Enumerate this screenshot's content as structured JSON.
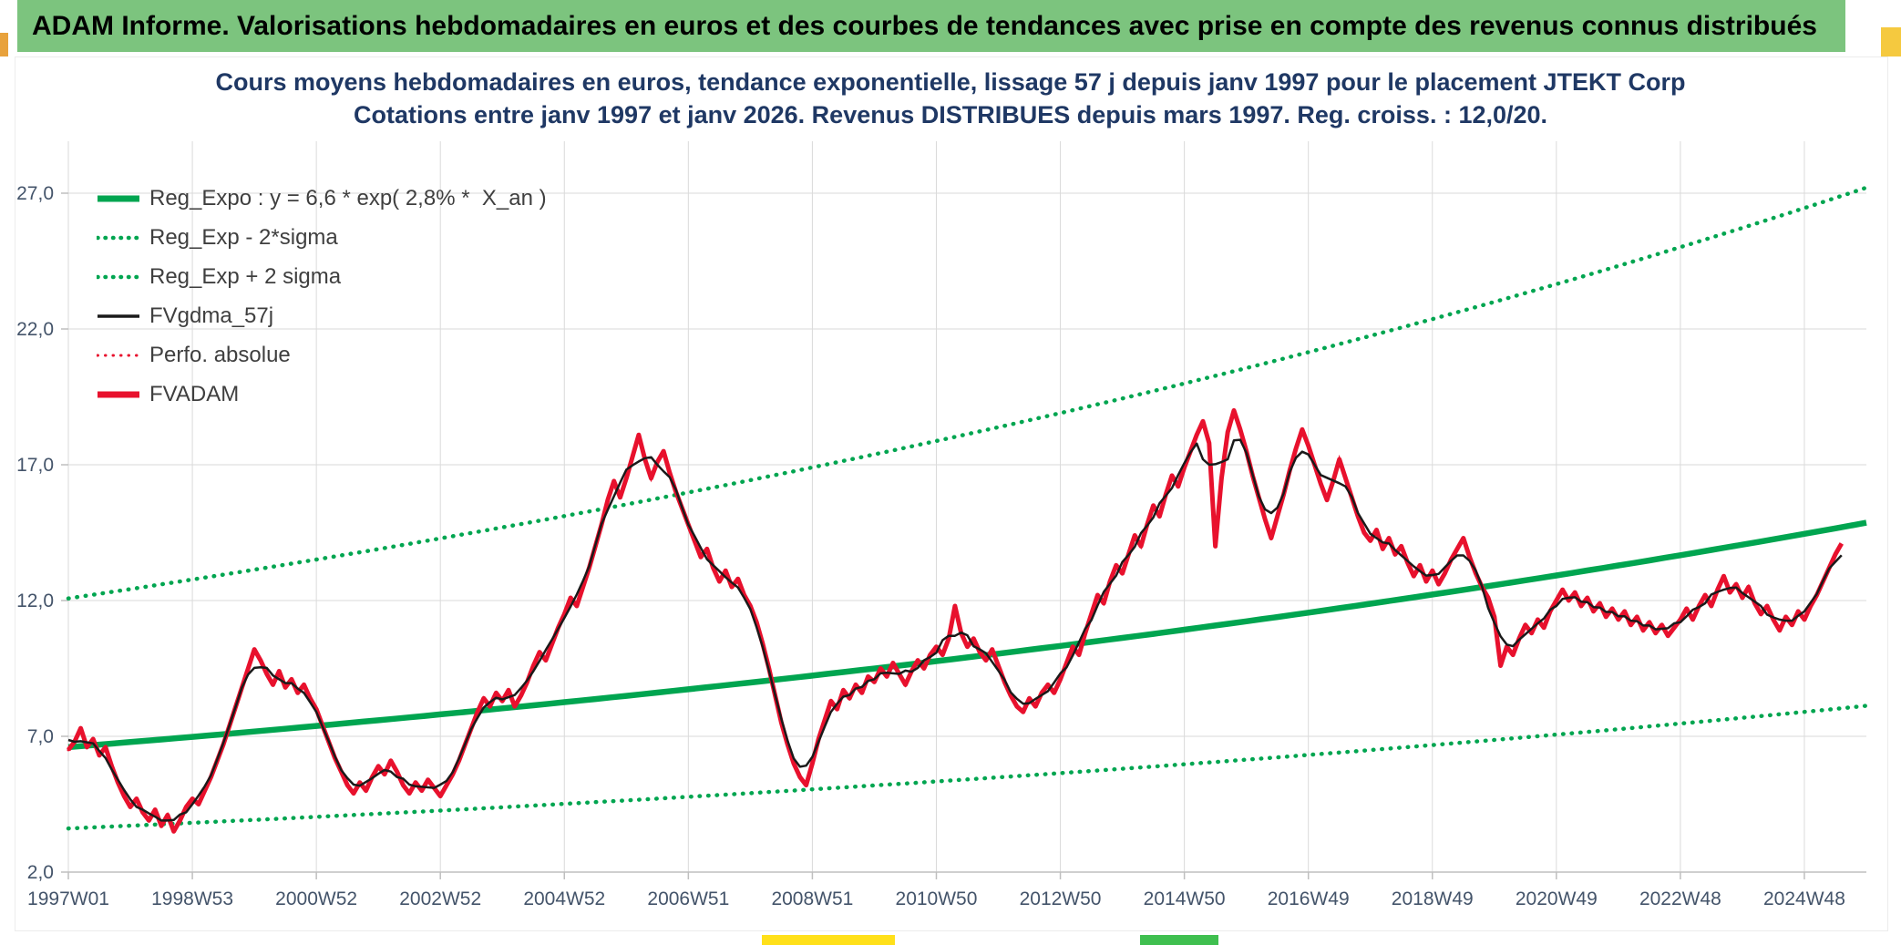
{
  "header": {
    "title": "ADAM Informe. Valorisations hebdomadaires en euros et des courbes de tendances avec prise en compte des revenus connus distribués"
  },
  "colors": {
    "green": "#00A550",
    "red": "#E8112D",
    "black": "#1A1A1A",
    "grid": "#DADADA",
    "axis_line": "#BFBFBF",
    "axis_text": "#44546A",
    "title_text": "#1F3864",
    "header_bg": "#7CC47E",
    "legend_text": "#3F3F3F"
  },
  "chart_data": {
    "type": "line",
    "title": "Cours moyens hebdomadaires en euros, tendance exponentielle, lissage 57 j depuis janv 1997 pour le placement JTEKT Corp",
    "subtitle": "Cotations entre janv 1997 et janv 2026. Revenus DISTRIBUES depuis mars 1997. Reg. croiss. : 12,0/20.",
    "grid": true,
    "legend_position": "top-left",
    "x_axis": {
      "range": [
        1997,
        2026
      ],
      "tick_years": [
        1997,
        1999,
        2001,
        2003,
        2005,
        2007,
        2009,
        2011,
        2013,
        2015,
        2017,
        2019,
        2021,
        2023,
        2025
      ],
      "tick_labels": [
        "1997W01",
        "1998W53",
        "2000W52",
        "2002W52",
        "2004W52",
        "2006W51",
        "2008W51",
        "2010W50",
        "2012W50",
        "2014W50",
        "2016W49",
        "2018W49",
        "2020W49",
        "2022W48",
        "2024W48"
      ]
    },
    "y_axis": {
      "range": [
        2,
        28.5
      ],
      "tick_values": [
        2,
        7,
        12,
        17,
        22,
        27
      ],
      "tick_labels": [
        "2,0",
        "7,0",
        "12,0",
        "17,0",
        "22,0",
        "27,0"
      ]
    },
    "regression": {
      "formula_label": "y = 6,6 * exp( 2,8% *  X_an )",
      "y0": 6.6,
      "annual_rate": 0.028,
      "x0_year": 1997,
      "band_factor": 1.83
    },
    "legend": [
      {
        "label": "Reg_Expo : y = 6,6 * exp( 2,8% *  X_an )",
        "color": "green",
        "style": "solid",
        "width": 7
      },
      {
        "label": "Reg_Exp - 2*sigma",
        "color": "green",
        "style": "dotted",
        "width": 4.5
      },
      {
        "label": "Reg_Exp + 2 sigma",
        "color": "green",
        "style": "dotted",
        "width": 4.5
      },
      {
        "label": "FVgdma_57j",
        "color": "black",
        "style": "solid",
        "width": 3.5
      },
      {
        "label": "Perfo. absolue",
        "color": "red",
        "style": "dotted",
        "width": 3
      },
      {
        "label": "FVADAM",
        "color": "red",
        "style": "solid",
        "width": 7
      }
    ],
    "series": [
      {
        "name": "FVADAM",
        "color": "red",
        "style": "solid",
        "width": 5,
        "x_start": 1997.0,
        "x_step": 0.1,
        "values": [
          6.5,
          6.8,
          7.3,
          6.6,
          6.9,
          6.3,
          6.6,
          5.9,
          5.3,
          4.8,
          4.4,
          4.7,
          4.2,
          3.9,
          4.3,
          3.7,
          4.1,
          3.5,
          3.9,
          4.4,
          4.7,
          4.5,
          5.0,
          5.5,
          6.1,
          6.7,
          7.4,
          8.1,
          8.8,
          9.5,
          10.2,
          9.8,
          9.3,
          8.9,
          9.4,
          8.8,
          9.1,
          8.6,
          8.9,
          8.4,
          8.0,
          7.4,
          6.8,
          6.2,
          5.7,
          5.2,
          4.9,
          5.3,
          5.0,
          5.5,
          5.9,
          5.6,
          6.1,
          5.7,
          5.2,
          4.9,
          5.3,
          5.0,
          5.4,
          5.1,
          4.8,
          5.2,
          5.6,
          6.1,
          6.7,
          7.3,
          7.9,
          8.4,
          8.1,
          8.6,
          8.3,
          8.7,
          8.1,
          8.5,
          9.0,
          9.6,
          10.1,
          9.8,
          10.4,
          11.0,
          11.5,
          12.1,
          11.8,
          12.5,
          13.2,
          14.0,
          14.8,
          15.7,
          16.4,
          15.8,
          16.5,
          17.3,
          18.1,
          17.2,
          16.5,
          17.1,
          17.5,
          16.7,
          16.0,
          15.4,
          14.8,
          14.2,
          13.6,
          13.9,
          13.2,
          12.7,
          13.1,
          12.5,
          12.8,
          12.2,
          11.8,
          11.2,
          10.4,
          9.5,
          8.5,
          7.5,
          6.7,
          6.0,
          5.5,
          5.2,
          6.0,
          6.9,
          7.6,
          8.3,
          8.0,
          8.7,
          8.4,
          8.9,
          8.6,
          9.2,
          9.0,
          9.5,
          9.2,
          9.7,
          9.3,
          8.9,
          9.4,
          9.8,
          9.5,
          10.0,
          10.3,
          10.0,
          10.6,
          11.8,
          10.8,
          10.3,
          10.6,
          10.1,
          9.8,
          10.2,
          9.6,
          9.0,
          8.5,
          8.1,
          7.9,
          8.4,
          8.1,
          8.6,
          8.9,
          8.6,
          9.1,
          9.7,
          10.3,
          10.0,
          10.8,
          11.5,
          12.2,
          11.9,
          12.7,
          13.3,
          13.0,
          13.7,
          14.4,
          14.0,
          14.8,
          15.5,
          15.1,
          15.9,
          16.6,
          16.2,
          16.9,
          17.5,
          18.1,
          18.6,
          17.8,
          14.0,
          16.5,
          18.2,
          19.0,
          18.3,
          17.5,
          16.6,
          15.8,
          15.0,
          14.3,
          15.1,
          15.9,
          16.8,
          17.6,
          18.3,
          17.7,
          17.0,
          16.3,
          15.7,
          16.4,
          17.2,
          16.5,
          15.8,
          15.1,
          14.5,
          14.2,
          14.6,
          13.9,
          14.3,
          13.7,
          14.0,
          13.4,
          12.9,
          13.3,
          12.7,
          13.1,
          12.6,
          13.0,
          13.5,
          13.9,
          14.3,
          13.6,
          13.0,
          12.5,
          12.1,
          11.4,
          9.6,
          10.3,
          10.0,
          10.6,
          11.1,
          10.8,
          11.3,
          11.0,
          11.6,
          12.0,
          12.4,
          12.0,
          12.3,
          11.8,
          12.1,
          11.6,
          11.9,
          11.4,
          11.7,
          11.3,
          11.6,
          11.1,
          11.4,
          10.9,
          11.2,
          10.8,
          11.1,
          10.7,
          11.0,
          11.3,
          11.7,
          11.3,
          11.8,
          12.2,
          11.8,
          12.4,
          12.9,
          12.3,
          12.6,
          12.1,
          12.5,
          11.9,
          11.5,
          11.8,
          11.3,
          10.9,
          11.4,
          11.1,
          11.6,
          11.3,
          11.8,
          12.2,
          12.7,
          13.2,
          13.7,
          14.1
        ]
      },
      {
        "name": "FVgdma_57j",
        "color": "black",
        "style": "solid",
        "width": 2.5,
        "derived_from": "FVADAM",
        "transform": "centered_moving_average",
        "window": 5
      },
      {
        "name": "Perfo. absolue",
        "color": "red",
        "style": "dotted",
        "width": 3,
        "derived_from": "FVADAM",
        "transform": "identical"
      },
      {
        "name": "Reg_Expo",
        "color": "green",
        "style": "solid",
        "width": 6.5,
        "formula": "y = 6.6 * exp(0.028 * X_an)"
      },
      {
        "name": "Reg_Exp - 2*sigma",
        "color": "green",
        "style": "dotted",
        "width": 4.5,
        "formula": "reg / 1.83"
      },
      {
        "name": "Reg_Exp + 2 sigma",
        "color": "green",
        "style": "dotted",
        "width": 4.5,
        "formula": "reg * 1.83"
      }
    ]
  }
}
